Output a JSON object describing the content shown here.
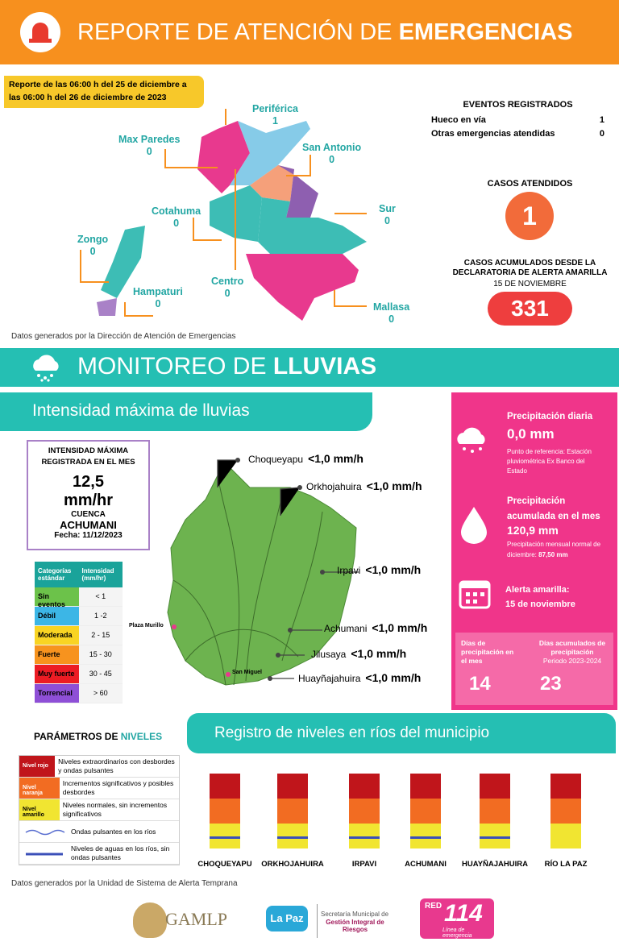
{
  "header": {
    "title_light": "REPORTE DE ATENCIÓN DE",
    "title_bold": "EMERGENCIAS"
  },
  "report_period": "Reporte de las  06:00 h del 25 de diciembre a las 06:00 h del 26 de diciembre de 2023",
  "districts": [
    {
      "name": "Periférica",
      "value": "1"
    },
    {
      "name": "Max Paredes",
      "value": "0"
    },
    {
      "name": "San Antonio",
      "value": "0"
    },
    {
      "name": "Cotahuma",
      "value": "0"
    },
    {
      "name": "Sur",
      "value": "0"
    },
    {
      "name": "Zongo",
      "value": "0"
    },
    {
      "name": "Centro",
      "value": "0"
    },
    {
      "name": "Hampaturi",
      "value": "0"
    },
    {
      "name": "Mallasa",
      "value": "0"
    }
  ],
  "events": {
    "title": "EVENTOS REGISTRADOS",
    "rows": [
      [
        "Hueco en vía",
        "1"
      ],
      [
        "Otras emergencias atendidas",
        "0"
      ]
    ]
  },
  "cases": {
    "title": "CASOS ATENDIDOS",
    "value": "1"
  },
  "accumulated": {
    "title": "CASOS ACUMULADOS DESDE LA DECLARATORIA DE ALERTA AMARILLA",
    "date": "15 DE NOVIEMBRE",
    "value": "331"
  },
  "source_1": "Datos generados por la Dirección de Atención de Emergencias",
  "rain": {
    "title_light": "MONITOREO DE",
    "title_bold": "LLUVIAS",
    "subtitle": "Intensidad máxima de lluvias",
    "max_box": {
      "title": "INTENSIDAD MÁXIMA REGISTRADA EN EL MES",
      "value": "12,5",
      "unit": "mm/hr",
      "basin_label": "CUENCA",
      "basin": "ACHUMANI",
      "date": "Fecha: 11/12/2023"
    },
    "table": {
      "headers": [
        "Categorías estándar",
        "Intensidad (mm/hr)"
      ],
      "rows": [
        {
          "category": "Sin eventos",
          "range": "< 1",
          "color": "#6cc24a"
        },
        {
          "category": "Débil",
          "range": "1 -2",
          "color": "#3cb6e6"
        },
        {
          "category": "Moderada",
          "range": "2 - 15",
          "color": "#f9d423"
        },
        {
          "category": "Fuerte",
          "range": "15 - 30",
          "color": "#f7931e"
        },
        {
          "category": "Muy fuerte",
          "range": "30 - 45",
          "color": "#ec1c24"
        },
        {
          "category": "Torrencial",
          "range": "> 60",
          "color": "#8e4fd6"
        }
      ]
    },
    "basins": [
      {
        "name": "Choqueyapu",
        "value": "<1,0 mm/h"
      },
      {
        "name": "Orkhojahuira",
        "value": "<1,0 mm/h"
      },
      {
        "name": "Irpavi",
        "value": "<1,0 mm/h"
      },
      {
        "name": "Achumani",
        "value": "<1,0 mm/h"
      },
      {
        "name": "Jilusaya",
        "value": "<1,0 mm/h"
      },
      {
        "name": "Huayñajahuira",
        "value": "<1,0 mm/h"
      }
    ],
    "places": [
      "Plaza Murillo",
      "San Miguel"
    ],
    "panel": {
      "daily_title": "Precipitación diaria",
      "daily_value": "0,0 mm",
      "daily_note": "Punto de referencia: Estación pluviométrica Ex Banco del Estado",
      "month_title": "Precipitación acumulada en el mes",
      "month_value": "120,9 mm",
      "month_note": "Precipitación mensual normal de diciembre:",
      "month_normal": "87,50 mm",
      "alert_title": "Alerta amarilla:",
      "alert_date": "15 de noviembre",
      "days_title": "Días de precipitación en el mes",
      "days_value": "14",
      "acc_title": "Días acumulados de precipitación",
      "acc_period": "Periodo 2023-2024",
      "acc_value": "23"
    }
  },
  "levels": {
    "title_light": "PARÁMETROS DE",
    "title_bold": "NIVELES",
    "rivers_title": "Registro de niveles en ríos del municipio",
    "legend": [
      {
        "label": "Nivel rojo",
        "text": "Niveles extraordinarios con desbordes y ondas pulsantes"
      },
      {
        "label": "Nivel  naranja",
        "text": "Incrementos significativos y posibles desbordes"
      },
      {
        "label": "Nivel amarillo",
        "text": "Niveles normales, sin incrementos significativos"
      },
      {
        "text": "Ondas pulsantes en los ríos"
      },
      {
        "text": "Niveles de aguas en los ríos, sin ondas pulsantes"
      }
    ],
    "rivers": [
      "CHOQUEYAPU",
      "ORKHOJAHUIRA",
      "IRPAVI",
      "ACHUMANI",
      "HUAYÑAJAHUIRA",
      "RÍO LA PAZ"
    ]
  },
  "source_2": "Datos generados por la Unidad de Sistema de Alerta Temprana",
  "footer": {
    "gamlp": "GAMLP",
    "lapaz": "La Paz",
    "secretaria": "Secretaría Municipal de",
    "gestion": "Gestión Integral de Riesgos",
    "red": "RED",
    "num": "114",
    "linea": "Línea de emergencia"
  }
}
